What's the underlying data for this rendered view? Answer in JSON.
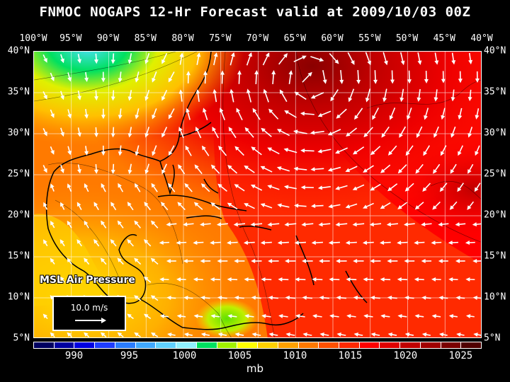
{
  "title": "FNMOC NOGAPS 12-Hr Forecast valid at 2009/10/03 00Z",
  "longitude_labels": [
    "100°W",
    "95°W",
    "90°W",
    "85°W",
    "80°W",
    "75°W",
    "70°W",
    "65°W",
    "60°W",
    "55°W",
    "50°W",
    "45°W",
    "40°W"
  ],
  "latitude_labels": [
    "40°N",
    "35°N",
    "30°N",
    "25°N",
    "20°N",
    "15°N",
    "10°N",
    "5°N"
  ],
  "map_label": "MSL Air Pressure",
  "wind_scale_label": "10.0 m/s",
  "colorbar": {
    "colors": [
      "#000060",
      "#0000a0",
      "#0000e0",
      "#1e3cff",
      "#2a7cff",
      "#40a8ff",
      "#60d0ff",
      "#90f0ff",
      "#00e060",
      "#a0f000",
      "#ffff00",
      "#ffd000",
      "#ffa000",
      "#ff7800",
      "#ff5000",
      "#ff2800",
      "#ff0000",
      "#e00000",
      "#c00000",
      "#a00000",
      "#7a0000",
      "#500000"
    ],
    "labels": [
      "990",
      "995",
      "1000",
      "1005",
      "1010",
      "1015",
      "1020",
      "1025"
    ],
    "units": "mb"
  },
  "colors": {
    "land_outline": "#000000",
    "grid": "#ffffff",
    "wind_vector": "#ffffff"
  }
}
